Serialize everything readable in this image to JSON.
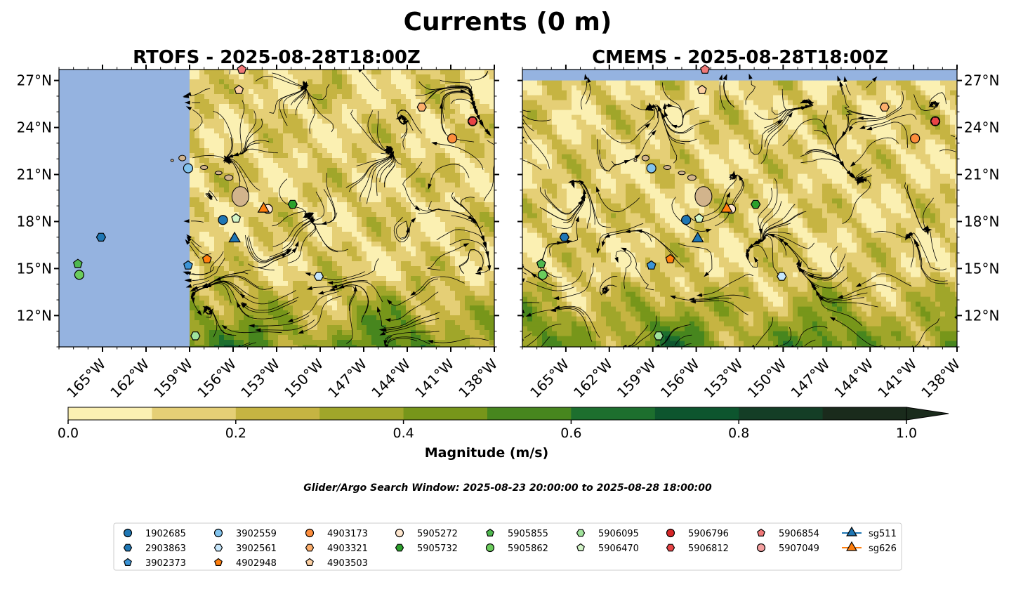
{
  "figure": {
    "title": "Currents (0 m)",
    "search_window": "Glider/Argo Search Window: 2025-08-23 20:00:00 to 2025-08-28 18:00:00"
  },
  "colors": {
    "land": "#d2b48c",
    "ocean_background": "#95b3e0",
    "streamline": "#000000",
    "colormap": [
      "#fbf0b2",
      "#e5cf76",
      "#c6b442",
      "#a0a62a",
      "#77961a",
      "#47861e",
      "#1d6f2e",
      "#0d552e",
      "#143e26",
      "#1a2b1c"
    ]
  },
  "chart_data": {
    "type": "map",
    "colorbar": {
      "label": "Magnitude (m/s)",
      "levels": [
        0.0,
        0.1,
        0.2,
        0.3,
        0.4,
        0.5,
        0.6,
        0.7,
        0.8,
        0.9,
        1.0
      ],
      "ticks": [
        "0.0",
        "0.2",
        "0.4",
        "0.6",
        "0.8",
        "1.0"
      ],
      "extend": "max"
    },
    "lon_range": [
      -168,
      -138
    ],
    "lat_range": [
      10,
      27.7
    ],
    "lon_ticks": [
      "165°W",
      "162°W",
      "159°W",
      "156°W",
      "153°W",
      "150°W",
      "147°W",
      "144°W",
      "141°W",
      "138°W"
    ],
    "lat_ticks": [
      "27°N",
      "24°N",
      "21°N",
      "18°N",
      "15°N",
      "12°N"
    ],
    "lon_tick_values": [
      -165,
      -162,
      -159,
      -156,
      -153,
      -150,
      -147,
      -144,
      -141,
      -138
    ],
    "lat_tick_values": [
      27,
      24,
      21,
      18,
      15,
      12
    ],
    "panels": [
      {
        "title": "RTOFS - 2025-08-28T18:00Z",
        "model": "RTOFS",
        "data_lon_min": -159
      },
      {
        "title": "CMEMS - 2025-08-28T18:00Z",
        "model": "CMEMS",
        "data_lat_max": 27
      }
    ],
    "platforms": [
      {
        "id": "1902685",
        "marker": "circle",
        "color": "#1f77b4",
        "lon": -156.7,
        "lat": 18.1
      },
      {
        "id": "2903863",
        "marker": "hexagon",
        "color": "#1f77b4",
        "lon": -165.1,
        "lat": 17.0
      },
      {
        "id": "3902373",
        "marker": "pentagon",
        "color": "#3c94d6",
        "lon": -159.1,
        "lat": 15.2
      },
      {
        "id": "3902559",
        "marker": "circle",
        "color": "#82c4ee",
        "lon": -159.1,
        "lat": 21.4
      },
      {
        "id": "3902561",
        "marker": "hexagon",
        "color": "#c6e6fb",
        "lon": -150.1,
        "lat": 14.5
      },
      {
        "id": "4902948",
        "marker": "pentagon",
        "color": "#ff7f0e",
        "lon": -157.8,
        "lat": 15.6
      },
      {
        "id": "4903173",
        "marker": "circle",
        "color": "#fd8d3c",
        "lon": -140.9,
        "lat": 23.3
      },
      {
        "id": "4903321",
        "marker": "hexagon",
        "color": "#fdae6b",
        "lon": -143.0,
        "lat": 25.3
      },
      {
        "id": "4903503",
        "marker": "pentagon",
        "color": "#fdd0a2",
        "lon": -155.6,
        "lat": 26.4
      },
      {
        "id": "5905272",
        "marker": "circle",
        "color": "#fee6ce",
        "lon": -153.6,
        "lat": 18.8
      },
      {
        "id": "5905732",
        "marker": "hexagon",
        "color": "#2ca02c",
        "lon": -151.9,
        "lat": 19.1
      },
      {
        "id": "5905855",
        "marker": "pentagon",
        "color": "#4fb84f",
        "lon": -166.7,
        "lat": 15.3
      },
      {
        "id": "5905862",
        "marker": "circle",
        "color": "#6bcc5c",
        "lon": -166.6,
        "lat": 14.6
      },
      {
        "id": "5906095",
        "marker": "hexagon",
        "color": "#a1e39c",
        "lon": -158.6,
        "lat": 10.7
      },
      {
        "id": "5906470",
        "marker": "pentagon",
        "color": "#d3f5c8",
        "lon": -155.8,
        "lat": 18.2
      },
      {
        "id": "5906796",
        "marker": "circle",
        "color": "#d62728",
        "lon": -139.5,
        "lat": 24.4
      },
      {
        "id": "5906812",
        "marker": "hexagon",
        "color": "#e84446",
        "lon": -139.5,
        "lat": 24.4
      },
      {
        "id": "5906854",
        "marker": "pentagon",
        "color": "#f07878",
        "lon": -155.4,
        "lat": 27.7
      },
      {
        "id": "5907049",
        "marker": "circle",
        "color": "#f5a0a0",
        "lon": -155.4,
        "lat": 27.9
      },
      {
        "id": "sg511",
        "marker": "triangle",
        "color": "#1f77b4",
        "lon": -155.9,
        "lat": 16.9,
        "glider": true
      },
      {
        "id": "sg626",
        "marker": "triangle",
        "color": "#ff7f0e",
        "lon": -153.9,
        "lat": 18.8,
        "glider": true
      }
    ]
  }
}
